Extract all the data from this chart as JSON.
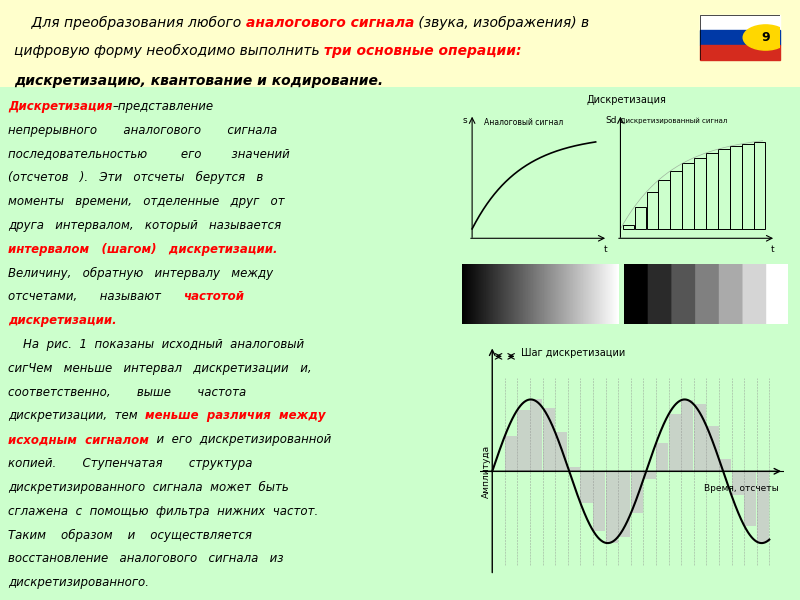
{
  "bg_yellow": "#ffffcc",
  "bg_green": "#ccffcc",
  "slide_num": "9",
  "header_line1_parts": [
    {
      "text": "    Для преобразования любого ",
      "color": "black",
      "bold": false
    },
    {
      "text": "аналогового сигнала",
      "color": "red",
      "bold": true
    },
    {
      "text": " (звука, изображения) в",
      "color": "black",
      "bold": false
    }
  ],
  "header_line2_parts": [
    {
      "text": "цифровую форму необходимо выполнить ",
      "color": "black",
      "bold": false
    },
    {
      "text": "три основные операции:",
      "color": "red",
      "bold": true
    }
  ],
  "header_line3": "дискретизацию, квантование и кодирование.",
  "body_lines": [
    [
      {
        "text": "Дискретизация",
        "color": "red",
        "bold": true
      },
      {
        "text": "–представление",
        "color": "black",
        "bold": false
      }
    ],
    [
      {
        "text": "непрерывного       аналогового       сигнала",
        "color": "black",
        "bold": false
      }
    ],
    [
      {
        "text": "последовательностью         его        значений",
        "color": "black",
        "bold": false
      }
    ],
    [
      {
        "text": "(отсчетов   ).   Эти   отсчеты   берутся   в",
        "color": "black",
        "bold": false
      }
    ],
    [
      {
        "text": "моменты   времени,   отделенные   друг   от",
        "color": "black",
        "bold": false
      }
    ],
    [
      {
        "text": "друга   интервалом,   который   называется",
        "color": "black",
        "bold": false
      }
    ],
    [
      {
        "text": "интервалом   (шагом)   дискретизации.",
        "color": "red",
        "bold": true
      }
    ],
    [
      {
        "text": "Величину,   обратную   интервалу   между",
        "color": "black",
        "bold": false
      }
    ],
    [
      {
        "text": "отсчетами,      называют      ",
        "color": "black",
        "bold": false
      },
      {
        "text": "частотой",
        "color": "red",
        "bold": true
      }
    ],
    [
      {
        "text": "дискретизации.",
        "color": "red",
        "bold": true
      }
    ],
    [
      {
        "text": "    На  рис.  1  показаны  исходный  аналоговый",
        "color": "black",
        "bold": false
      }
    ],
    [
      {
        "text": "сигЧем   меньше   интервал   дискретизации",
        "color": "black",
        "bold": false
      },
      {
        "text": "   и,",
        "color": "black",
        "bold": false
      }
    ],
    [
      {
        "text": "соответственно,       выше       частота",
        "color": "black",
        "bold": false
      }
    ],
    [
      {
        "text": "дискретизации,  тем  ",
        "color": "black",
        "bold": false
      },
      {
        "text": "меньше  различия  между",
        "color": "red",
        "bold": true
      }
    ],
    [
      {
        "text": "исходным  сигналом",
        "color": "red",
        "bold": true
      },
      {
        "text": "  и  его  дискретизированной",
        "color": "black",
        "bold": false
      }
    ],
    [
      {
        "text": "копией.       Ступенчатая       структура",
        "color": "black",
        "bold": false
      }
    ],
    [
      {
        "text": "дискретизированного  сигнала  может  быть",
        "color": "black",
        "bold": false
      }
    ],
    [
      {
        "text": "сглажена  с  помощью  фильтра  нижних  частот.",
        "color": "black",
        "bold": false
      }
    ],
    [
      {
        "text": "Таким    образом    и    осуществляется",
        "color": "black",
        "bold": false
      }
    ],
    [
      {
        "text": "восстановление   аналогового   сигнала   из",
        "color": "black",
        "bold": false
      }
    ],
    [
      {
        "text": "дискретизированного.",
        "color": "black",
        "bold": false
      }
    ]
  ],
  "diag1_title": "Дискретизация",
  "diag1_left_label": "Аналоговый сигнал",
  "diag1_left_ylabel": "s",
  "diag1_left_xlabel": "t",
  "diag1_right_label": "Дискретизированный сигнал",
  "diag1_right_ylabel": "Sd",
  "diag1_right_xlabel": "t",
  "diag2_title": "Шаг дискретизации",
  "diag2_xlabel": "Время, отсчеты",
  "diag2_ylabel": "Амплитуда",
  "fontsize_header": 10,
  "fontsize_body": 8.5,
  "fontsize_diag": 7
}
